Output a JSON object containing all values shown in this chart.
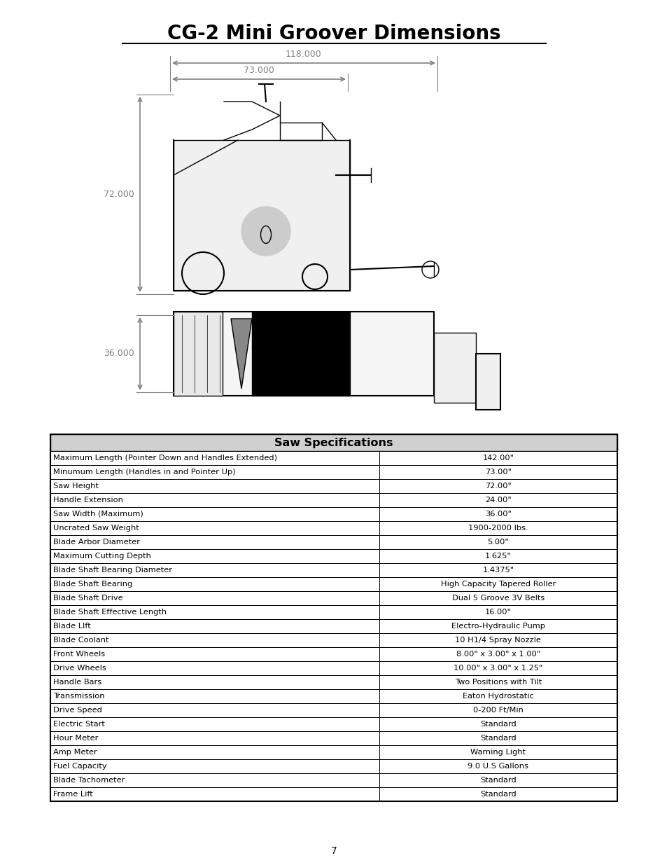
{
  "title": "CG-2 Mini Groover Dimensions",
  "title_fontsize": 20,
  "title_bold": true,
  "title_underline": true,
  "page_number": "7",
  "background_color": "#ffffff",
  "dim_118": "118.000",
  "dim_73": "73.000",
  "dim_72": "72.000",
  "dim_36": "36.000",
  "table_title": "Saw Specifications",
  "table_rows": [
    [
      "Maximum Length (Pointer Down and Handles Extended)",
      "142.00\""
    ],
    [
      "Minumum Length (Handles in and Pointer Up)",
      "73.00\""
    ],
    [
      "Saw Height",
      "72.00\""
    ],
    [
      "Handle Extension",
      "24.00\""
    ],
    [
      "Saw Width (Maximum)",
      "36.00\""
    ],
    [
      "Uncrated Saw Weight",
      "1900-2000 lbs."
    ],
    [
      "Blade Arbor Diameter",
      "5.00\""
    ],
    [
      "Maximum Cutting Depth",
      "1.625\""
    ],
    [
      "Blade Shaft Bearing Diameter",
      "1.4375\""
    ],
    [
      "Blade Shaft Bearing",
      "High Capacity Tapered Roller"
    ],
    [
      "Blade Shaft Drive",
      "Dual 5 Groove 3V Belts"
    ],
    [
      "Blade Shaft Effective Length",
      "16.00\""
    ],
    [
      "Blade LIft",
      "Electro-Hydraulic Pump"
    ],
    [
      "Blade Coolant",
      "10 H1/4 Spray Nozzle"
    ],
    [
      "Front Wheels",
      "8.00\" x 3.00\" x 1.00\""
    ],
    [
      "Drive Wheels",
      "10.00\" x 3.00\" x 1.25\""
    ],
    [
      "Handle Bars",
      "Two Positions with Tilt"
    ],
    [
      "Transmission",
      "Eaton Hydrostatic"
    ],
    [
      "Drive Speed",
      "0-200 Ft/Min"
    ],
    [
      "Electric Start",
      "Standard"
    ],
    [
      "Hour Meter",
      "Standard"
    ],
    [
      "Amp Meter",
      "Warning Light"
    ],
    [
      "Fuel Capacity",
      "9.0 U.S Gallons"
    ],
    [
      "Blade Tachometer",
      "Standard"
    ],
    [
      "Frame Lift",
      "Standard"
    ]
  ],
  "col_split": 0.58,
  "text_color": "#000000",
  "line_color": "#000000",
  "dim_color": "#808080",
  "table_header_bg": "#d0d0d0",
  "table_row_bg": "#ffffff",
  "table_border_color": "#000000"
}
